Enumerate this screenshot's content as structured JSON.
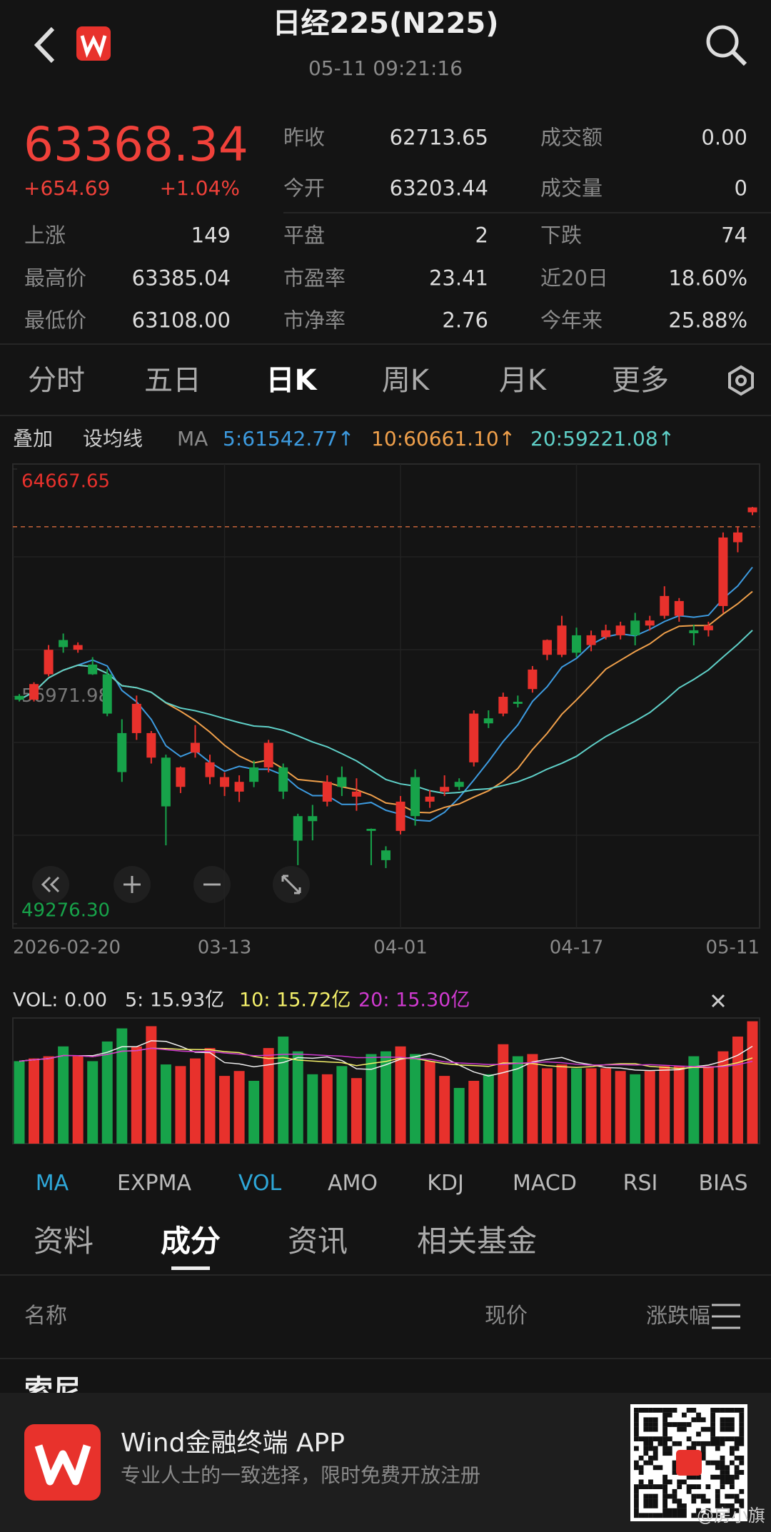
{
  "header": {
    "title": "日经225(N225)",
    "datetime": "05-11 09:21:16"
  },
  "quote": {
    "price": "63368.34",
    "change": "+654.69",
    "change_pct": "+1.04%"
  },
  "stats": [
    [
      [
        "昨收",
        "62713.65"
      ],
      [
        "成交额",
        "0.00"
      ]
    ],
    [
      [
        "今开",
        "63203.44"
      ],
      [
        "成交量",
        "0"
      ]
    ],
    [
      [
        "上涨",
        "149"
      ],
      [
        "平盘",
        "2"
      ],
      [
        "下跌",
        "74"
      ]
    ],
    [
      [
        "最高价",
        "63385.04"
      ],
      [
        "市盈率",
        "23.41"
      ],
      [
        "近20日",
        "18.60%"
      ]
    ],
    [
      [
        "最低价",
        "63108.00"
      ],
      [
        "市净率",
        "2.76"
      ],
      [
        "今年来",
        "25.88%"
      ]
    ]
  ],
  "period_tabs": [
    "分时",
    "五日",
    "日K",
    "周K",
    "月K",
    "更多"
  ],
  "ma_bar": {
    "overlay": "叠加",
    "set_ma": "设均线",
    "label": "MA",
    "ma5": "5:61542.77↑",
    "ma10": "10:60661.10↑",
    "ma20": "20:59221.08↑"
  },
  "chart_data": [
    {
      "type": "candlestick",
      "categories": [
        "2026-02-20",
        null,
        null,
        null,
        null,
        null,
        null,
        null,
        null,
        null,
        null,
        null,
        null,
        null,
        "03-13",
        null,
        null,
        null,
        null,
        null,
        null,
        null,
        null,
        null,
        null,
        null,
        "04-01",
        null,
        null,
        null,
        null,
        null,
        null,
        null,
        null,
        null,
        null,
        null,
        "04-17",
        null,
        null,
        null,
        null,
        null,
        null,
        null,
        null,
        null,
        null,
        null,
        "05-11"
      ],
      "open": [
        56990,
        56860,
        57720,
        58880,
        58550,
        58050,
        57720,
        55730,
        55730,
        54900,
        54900,
        53910,
        55070,
        54240,
        53910,
        53750,
        54570,
        54570,
        54570,
        52920,
        52920,
        53410,
        54240,
        53580,
        52490,
        51760,
        52420,
        54240,
        53410,
        53750,
        54080,
        54740,
        56230,
        56390,
        56790,
        57220,
        58380,
        58380,
        59040,
        58710,
        58980,
        59040,
        59540,
        59370,
        59700,
        59700,
        59210,
        59210,
        60030,
        62190,
        63203.44
      ],
      "high": [
        57050,
        57450,
        58710,
        59100,
        58800,
        58300,
        57900,
        56200,
        57000,
        55800,
        55000,
        54600,
        56000,
        55000,
        54400,
        54300,
        54800,
        55500,
        54700,
        53000,
        53300,
        54300,
        54600,
        54200,
        52500,
        51900,
        53600,
        54500,
        53800,
        54300,
        54200,
        56500,
        56500,
        57100,
        57000,
        58000,
        58900,
        59700,
        59300,
        59200,
        59400,
        59500,
        59800,
        59700,
        60700,
        60300,
        59400,
        59500,
        62520,
        62700,
        63385.04
      ],
      "low": [
        56800,
        56800,
        57650,
        58450,
        58450,
        57700,
        56300,
        54080,
        55500,
        54700,
        51930,
        53700,
        54900,
        54000,
        53600,
        53400,
        53900,
        54400,
        53500,
        51260,
        52100,
        53250,
        53600,
        53100,
        51260,
        51160,
        52300,
        52600,
        53200,
        53600,
        53800,
        54600,
        55900,
        56300,
        56600,
        57100,
        58200,
        58300,
        58300,
        58500,
        58900,
        58900,
        58700,
        59200,
        59600,
        59500,
        58700,
        59000,
        59800,
        61850,
        63108
      ],
      "close": [
        56860,
        57390,
        58550,
        58640,
        58710,
        57720,
        56390,
        54410,
        56720,
        55730,
        53250,
        54570,
        55400,
        54740,
        54240,
        54080,
        54080,
        55400,
        53750,
        52090,
        52750,
        54080,
        53910,
        53750,
        52420,
        51430,
        53410,
        52920,
        53580,
        53910,
        53910,
        56390,
        56060,
        56960,
        56720,
        57880,
        58880,
        59370,
        58450,
        59040,
        59210,
        59370,
        59040,
        59540,
        60370,
        60200,
        59110,
        59370,
        62350,
        62520,
        63368.34
      ],
      "up_color": "#e8312c",
      "down_color": "#17a34a",
      "ylim": [
        49276.3,
        64667.65
      ],
      "yticks": [
        64667.65,
        56971.98,
        {
          "value": 49276.3,
          "label": "49276.30"
        }
      ]
    },
    {
      "type": "bar",
      "legend": [
        "VOL: 0.00",
        "5: 15.93亿",
        "10: 15.72亿",
        "20: 15.30亿"
      ],
      "values": [
        15.1,
        15.6,
        16.0,
        17.8,
        16.0,
        15.1,
        18.7,
        21.1,
        17.8,
        21.5,
        14.5,
        14.2,
        15.6,
        17.5,
        12.4,
        13.3,
        11.5,
        17.5,
        19.6,
        16.9,
        12.7,
        12.7,
        14.2,
        12.0,
        16.4,
        16.9,
        17.8,
        16.4,
        15.1,
        12.4,
        10.2,
        11.5,
        12.7,
        18.2,
        16.0,
        16.4,
        13.8,
        14.5,
        13.8,
        13.8,
        13.8,
        13.3,
        12.7,
        13.3,
        14.2,
        14.2,
        16.0,
        14.2,
        16.9,
        19.6,
        22.4
      ],
      "ylim": [
        0,
        23
      ]
    }
  ],
  "indicators": [
    "MA",
    "EXPMA",
    "VOL",
    "AMO",
    "KDJ",
    "MACD",
    "RSI",
    "BIAS"
  ],
  "info_tabs": [
    "资料",
    "成分",
    "资讯",
    "相关基金"
  ],
  "table": {
    "header": [
      "名称",
      "现价",
      "涨跌幅"
    ],
    "rows": [
      [
        "索尼"
      ]
    ]
  },
  "banner": {
    "title": "Wind金融终端 APP",
    "subtitle": "专业人士的一致选择，限时免费开放注册",
    "watermark": "@房小旗"
  }
}
